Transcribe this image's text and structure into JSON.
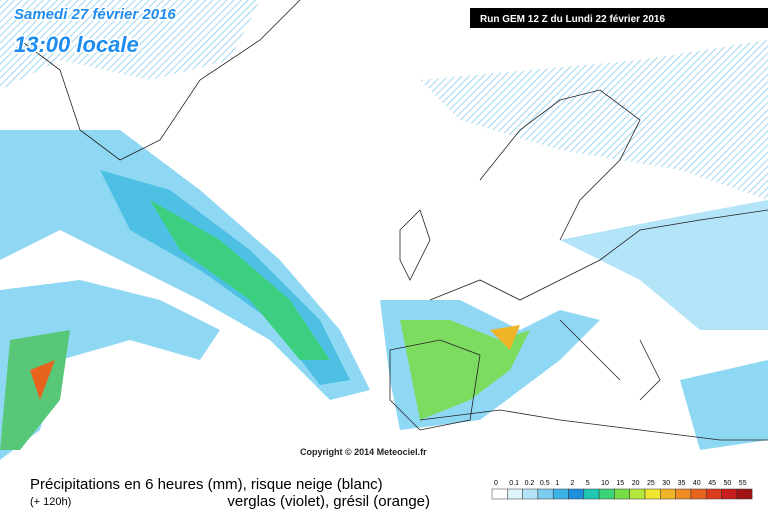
{
  "header": {
    "date": "Samedi 27 février 2016",
    "time": "13:00 locale",
    "run": "Run GEM 12 Z du Lundi 22 février 2016"
  },
  "copyright": "Copyright © 2014 Meteociel.fr",
  "footer": {
    "title": "Précipitations en 6 heures (mm), risque neige (blanc)",
    "lead": "(+ 120h)",
    "subtitle": "verglas (violet), grésil (orange)"
  },
  "legend": {
    "labels": [
      0,
      0.1,
      0.2,
      0.5,
      1,
      2,
      5,
      10,
      15,
      20,
      25,
      30,
      35,
      40,
      45,
      50,
      55
    ],
    "colors": [
      "#ffffff",
      "#e0f4fc",
      "#b4e4f8",
      "#7cccf0",
      "#3cb4e8",
      "#1e90dc",
      "#20c8b4",
      "#3cd278",
      "#78dc46",
      "#b4e63c",
      "#f0e632",
      "#f0b428",
      "#f08c28",
      "#e6641e",
      "#dc3c1e",
      "#c81e1e",
      "#a01414"
    ]
  }
}
